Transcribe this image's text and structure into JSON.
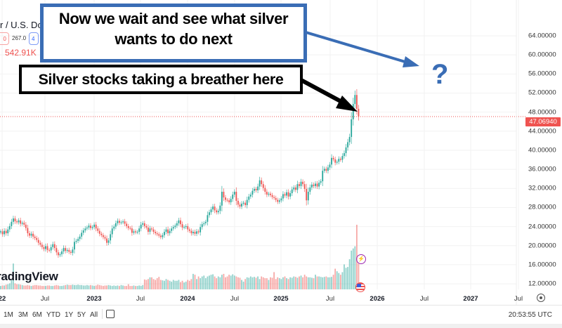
{
  "legend": {
    "symbol_title": "r / U.S. Dolla",
    "red_pill": "0",
    "pill_value": "267.0",
    "blue_pill": "4",
    "volume": "542.91K"
  },
  "annotations": {
    "blue_box": "Now we wait and see what silver wants to do next",
    "black_box": "Silver stocks taking a breather here",
    "question_mark": "?"
  },
  "logo": "TradingView",
  "toolbar": {
    "ranges": [
      "1M",
      "3M",
      "6M",
      "YTD",
      "1Y",
      "5Y",
      "All"
    ],
    "time": "20:53:55 UTC"
  },
  "colors": {
    "up": "#26a69a",
    "down": "#ef5350",
    "annotation_blue": "#3a6db5",
    "last_price": "#ef5350"
  },
  "chart_data": {
    "type": "candlestick",
    "interval": "weekly",
    "title": "",
    "start_week": "2022-01",
    "ylim": [
      10,
      66
    ],
    "y_ticks": [
      "64.00000",
      "60.00000",
      "56.00000",
      "52.00000",
      "48.00000",
      "44.00000",
      "40.00000",
      "36.00000",
      "32.00000",
      "28.00000",
      "24.00000",
      "20.00000",
      "16.00000",
      "12.00000"
    ],
    "x_ticks": [
      "22",
      "Jul",
      "2023",
      "Jul",
      "2024",
      "Jul",
      "2025",
      "Jul",
      "2026",
      "Jul",
      "2027",
      "Jul"
    ],
    "last_price": "47.06940",
    "first_open": 22.8,
    "closes": [
      23.0,
      22.4,
      23.1,
      22.6,
      23.4,
      24.1,
      25.0,
      25.7,
      25.1,
      24.9,
      25.3,
      24.6,
      24.8,
      24.4,
      23.7,
      22.6,
      22.1,
      22.5,
      21.9,
      21.6,
      21.2,
      20.6,
      20.2,
      19.7,
      19.3,
      19.9,
      19.1,
      19.0,
      19.7,
      20.3,
      19.5,
      18.6,
      18.0,
      18.2,
      18.8,
      19.5,
      18.9,
      19.1,
      18.7,
      18.5,
      19.2,
      20.8,
      21.0,
      21.4,
      21.9,
      22.7,
      23.2,
      23.6,
      23.8,
      24.2,
      23.7,
      23.9,
      24.4,
      23.6,
      23.1,
      22.5,
      22.2,
      21.8,
      21.5,
      20.6,
      21.1,
      22.4,
      23.6,
      24.0,
      24.7,
      25.2,
      24.8,
      24.9,
      25.1,
      24.6,
      24.1,
      23.7,
      23.6,
      22.7,
      23.0,
      22.8,
      22.9,
      23.6,
      24.4,
      24.7,
      24.1,
      23.8,
      22.9,
      23.6,
      23.4,
      22.9,
      22.6,
      22.4,
      22.1,
      21.8,
      22.2,
      22.9,
      23.4,
      22.6,
      23.1,
      23.6,
      23.9,
      24.2,
      24.7,
      25.3,
      24.5,
      23.8,
      23.9,
      24.1,
      23.4,
      23.1,
      22.6,
      22.9,
      22.5,
      23.0,
      22.8,
      23.9,
      24.5,
      24.7,
      25.0,
      26.4,
      27.0,
      27.6,
      28.2,
      27.4,
      27.0,
      27.3,
      28.4,
      31.3,
      30.1,
      29.6,
      29.5,
      29.1,
      29.8,
      30.7,
      31.3,
      29.4,
      28.6,
      28.2,
      28.8,
      29.0,
      28.5,
      29.6,
      30.3,
      30.7,
      31.5,
      31.9,
      31.6,
      32.4,
      33.7,
      32.9,
      32.1,
      31.3,
      30.7,
      30.9,
      30.6,
      30.2,
      30.0,
      29.6,
      29.2,
      29.5,
      29.9,
      30.8,
      30.5,
      31.2,
      30.3,
      31.0,
      31.8,
      32.2,
      31.7,
      32.9,
      32.5,
      33.4,
      32.9,
      31.9,
      29.5,
      31.3,
      32.2,
      32.8,
      32.5,
      33.0,
      32.4,
      33.2,
      33.5,
      35.7,
      36.1,
      35.7,
      36.4,
      37.0,
      38.4,
      38.1,
      37.4,
      37.6,
      38.2,
      38.0,
      38.8,
      39.4,
      40.6,
      41.7,
      42.8,
      46.5,
      49.7,
      51.6,
      48.7,
      47.07
    ],
    "volume_relative": [
      8,
      9,
      9,
      11,
      12,
      14,
      22,
      60,
      14,
      12,
      12,
      11,
      10,
      9,
      9,
      10,
      9,
      8,
      9,
      10,
      10,
      9,
      9,
      8,
      8,
      8,
      9,
      9,
      8,
      8,
      9,
      10,
      9,
      8,
      8,
      9,
      10,
      11,
      10,
      10,
      11,
      10,
      10,
      11,
      10,
      10,
      9,
      9,
      10,
      9,
      10,
      9,
      8,
      9,
      11,
      10,
      9,
      8,
      9,
      9,
      10,
      9,
      8,
      9,
      8,
      9,
      8,
      10,
      9,
      8,
      8,
      12,
      8,
      8,
      9,
      8,
      8,
      9,
      8,
      10,
      23,
      22,
      24,
      28,
      28,
      24,
      22,
      26,
      29,
      22,
      21,
      20,
      24,
      22,
      20,
      18,
      22,
      20,
      20,
      22,
      17,
      20,
      16,
      18,
      22,
      20,
      24,
      36,
      34,
      24,
      30,
      26,
      30,
      32,
      26,
      30,
      32,
      34,
      35,
      30,
      26,
      30,
      28,
      34,
      36,
      28,
      30,
      34,
      32,
      35,
      32,
      30,
      28,
      27,
      22,
      18,
      24,
      28,
      27,
      30,
      28,
      29,
      27,
      30,
      24,
      30,
      28,
      26,
      26,
      22,
      28,
      27,
      40,
      24,
      28,
      26,
      24,
      28,
      30,
      26,
      24,
      28,
      27,
      30,
      29,
      27,
      30,
      32,
      28,
      34,
      30,
      28,
      28,
      27,
      26,
      34,
      30,
      30,
      29,
      28,
      29,
      30,
      28,
      28,
      29,
      34,
      48,
      42,
      38,
      34,
      40,
      58,
      50,
      52,
      70,
      90,
      95,
      100,
      150,
      60
    ]
  }
}
